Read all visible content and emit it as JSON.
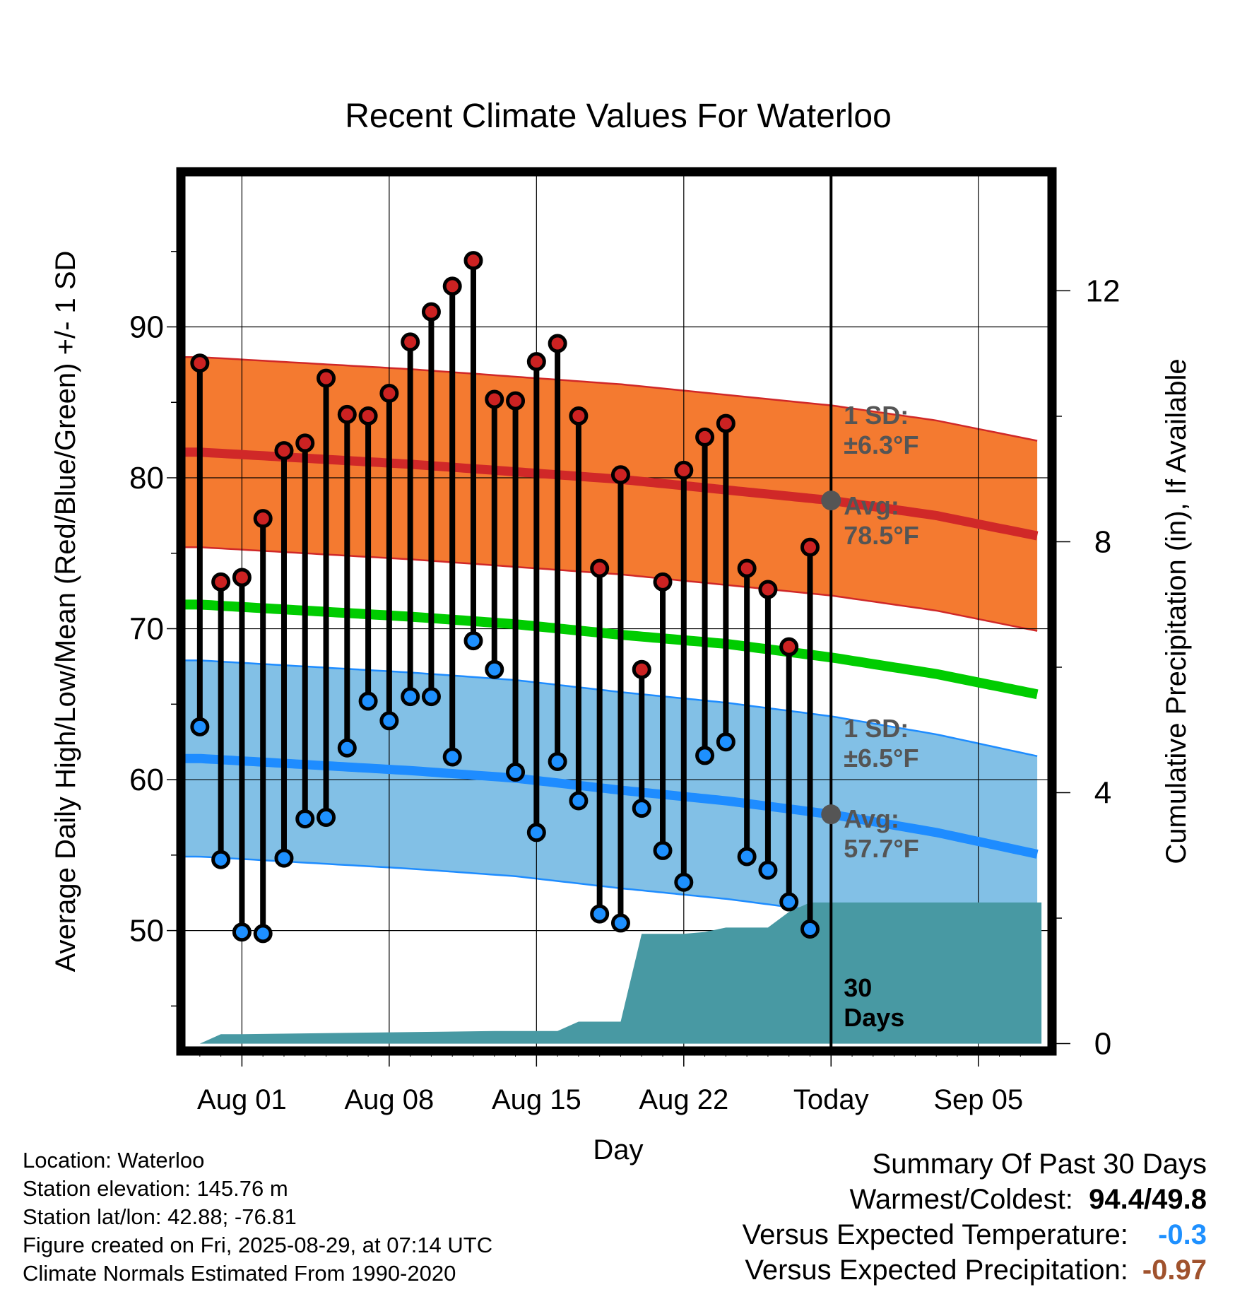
{
  "chart_data": {
    "type": "line",
    "title": "Recent Climate Values For Waterloo",
    "xlabel": "Day",
    "ylabel": "Average Daily High/Low/Mean (Red/Blue/Green) +/- 1 SD",
    "y2label": "Cumulative Precipitation (in), If Available",
    "x_tick_labels": [
      "Aug 01",
      "Aug 08",
      "Aug 15",
      "Aug 22",
      "Today",
      "Sep 05"
    ],
    "x_tick_days": [
      1,
      8,
      15,
      22,
      29,
      36
    ],
    "xlim": [
      -1.7,
      39.3
    ],
    "ylim": [
      42.3,
      100
    ],
    "y_ticks": [
      50,
      60,
      70,
      80,
      90
    ],
    "y2lim": [
      -0.05,
      13.83
    ],
    "y2_ticks": [
      0,
      4,
      8,
      12
    ],
    "grid": true,
    "today_day": 29,
    "daily_high_low": {
      "days": [
        -1,
        0,
        1,
        2,
        3,
        4,
        5,
        6,
        7,
        8,
        9,
        10,
        11,
        12,
        13,
        14,
        15,
        16,
        17,
        18,
        19,
        20,
        21,
        22,
        23,
        24,
        25,
        26,
        27,
        28
      ],
      "high": [
        87.6,
        73.1,
        73.4,
        77.3,
        81.8,
        82.3,
        86.6,
        84.2,
        84.1,
        85.6,
        89.0,
        91.0,
        92.7,
        94.4,
        85.2,
        85.1,
        87.7,
        88.9,
        84.1,
        74.0,
        80.2,
        67.3,
        73.1,
        80.5,
        82.7,
        83.6,
        74.0,
        72.6,
        68.8,
        75.4
      ],
      "low": [
        63.5,
        54.7,
        49.9,
        49.8,
        54.8,
        57.4,
        57.5,
        62.1,
        65.2,
        63.9,
        65.5,
        65.5,
        61.5,
        69.2,
        67.3,
        60.5,
        56.5,
        61.2,
        58.6,
        51.1,
        50.5,
        58.1,
        55.3,
        53.2,
        61.6,
        62.5,
        54.9,
        54.0,
        51.9,
        50.1
      ]
    },
    "normals": {
      "days": [
        -1,
        4,
        9,
        14,
        19,
        24,
        29,
        34,
        39
      ],
      "high_avg": [
        81.7,
        81.3,
        80.9,
        80.4,
        79.9,
        79.2,
        78.5,
        77.5,
        76.1
      ],
      "high_sd": 6.3,
      "low_avg": [
        61.4,
        61.0,
        60.6,
        60.1,
        59.3,
        58.6,
        57.7,
        56.5,
        55.0
      ],
      "low_sd": 6.5,
      "mean": [
        71.6,
        71.2,
        70.8,
        70.3,
        69.6,
        69.0,
        68.1,
        67.0,
        65.6
      ]
    },
    "precipitation": {
      "days": [
        -1,
        0,
        1,
        13,
        14,
        15,
        16,
        17,
        18,
        19,
        20,
        21,
        22,
        23,
        24,
        25,
        26,
        27,
        28,
        29,
        39
      ],
      "cumulative": [
        0.0,
        0.15,
        0.15,
        0.2,
        0.2,
        0.2,
        0.2,
        0.35,
        0.35,
        0.35,
        1.75,
        1.75,
        1.75,
        1.78,
        1.85,
        1.85,
        1.85,
        2.1,
        2.25,
        2.25,
        2.25
      ]
    },
    "series": [
      {
        "name": "High",
        "color": "#cc2222"
      },
      {
        "name": "Low",
        "color": "#1e90ff"
      },
      {
        "name": "Mean",
        "color": "#00cc00"
      }
    ],
    "annotations": {
      "high_sd": [
        "1 SD:",
        "±6.3°F"
      ],
      "high_avg": [
        "Avg:",
        "78.5°F"
      ],
      "low_sd": [
        "1 SD:",
        "±6.5°F"
      ],
      "low_avg": [
        "Avg:",
        "57.7°F"
      ],
      "days": [
        "30",
        "Days"
      ]
    },
    "colors": {
      "high_band": "#f47a30",
      "high_line": "#d02828",
      "mean_line": "#00cc00",
      "low_band": "#82c0e6",
      "low_line": "#1e8cff",
      "precip": "#4899a3",
      "annotation": "#555555",
      "high_marker": "#cc2222",
      "low_marker": "#1e90ff"
    }
  },
  "footer": {
    "location": "Location: Waterloo",
    "elevation": "Station elevation: 145.76 m",
    "latlon": "Station lat/lon: 42.88; -76.81",
    "created": "Figure created on Fri, 2025-08-29, at 07:14 UTC",
    "normals": "Climate Normals Estimated From 1990-2020"
  },
  "summary": {
    "title": "Summary Of Past 30 Days",
    "warmest_label": "Warmest/Coldest:",
    "warmest": "94.4",
    "coldest": "49.8",
    "temp_label": "Versus Expected Temperature:",
    "temp_value": "-0.3",
    "temp_color": "#1e90ff",
    "precip_label": "Versus Expected Precipitation:",
    "precip_value": "-0.97",
    "precip_color": "#a0522d"
  }
}
